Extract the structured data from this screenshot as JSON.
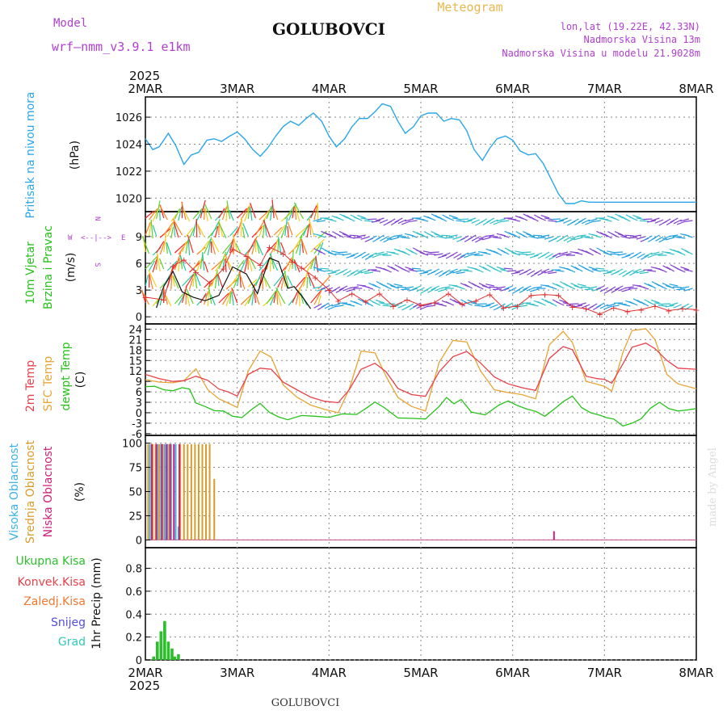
{
  "header": {
    "model_label": "Model",
    "model_name": "wrf–nmm_v3.9.1  e1km",
    "station_title": "GOLUBOVCI",
    "chart_kind": "Meteogram",
    "coords": "lon,lat (19.22E, 42.33N)",
    "elevation": "Nadmorska Visina 13m",
    "model_elevation": "Nadmorska Visina u modelu 21.9028m",
    "year_top": "2025",
    "footer_station": "GOLUBOVCI",
    "credit": "made by Angel"
  },
  "colors": {
    "pressure": "#2aa6e8",
    "t2m": "#e8404a",
    "sfc": "#e8a434",
    "dewpt": "#26c21a",
    "precip": "#2bbf2b",
    "high_cloud": "#3cb0e8",
    "mid_cloud": "#d89c2c",
    "low_cloud": "#d0207a",
    "header_purple": "#b040d0",
    "header_gold": "#e8b850"
  },
  "chart_data": [
    {
      "type": "line",
      "panel": "pressure",
      "ylabel_lines": [
        "Pritisak na nivou mora",
        "(hPa)"
      ],
      "x_unit": "days since 2025-03-02 00:00",
      "x_ticks": [
        "2MAR",
        "3MAR",
        "4MAR",
        "5MAR",
        "6MAR",
        "7MAR",
        "8MAR"
      ],
      "ylim": [
        1019,
        1027.5
      ],
      "yticks": [
        1020,
        1022,
        1024,
        1026
      ],
      "grid": true,
      "series": [
        {
          "name": "Pritisak na nivou mora",
          "x": [
            0,
            0.08,
            0.15,
            0.25,
            0.33,
            0.42,
            0.5,
            0.58,
            0.67,
            0.75,
            0.83,
            0.92,
            1,
            1.08,
            1.17,
            1.25,
            1.33,
            1.42,
            1.5,
            1.58,
            1.67,
            1.75,
            1.83,
            1.92,
            2,
            2.08,
            2.17,
            2.25,
            2.33,
            2.42,
            2.5,
            2.58,
            2.67,
            2.75,
            2.83,
            2.92,
            3,
            3.08,
            3.17,
            3.25,
            3.33,
            3.42,
            3.5,
            3.58,
            3.67,
            3.75,
            3.83,
            3.92,
            4,
            4.08,
            4.17,
            4.25,
            4.33,
            4.42,
            4.5,
            4.58,
            4.67,
            4.75,
            4.83,
            4.92,
            5,
            5.08,
            5.17,
            5.25,
            5.33,
            5.42,
            5.5,
            5.58,
            5.67,
            5.75,
            5.83,
            5.92,
            6
          ],
          "values": [
            1024.4,
            1023.6,
            1023.8,
            1024.8,
            1023.9,
            1022.5,
            1023.2,
            1023.4,
            1024.3,
            1024.4,
            1024.2,
            1024.6,
            1024.9,
            1024.4,
            1023.6,
            1023.1,
            1023.7,
            1024.6,
            1025.3,
            1025.7,
            1025.4,
            1025.9,
            1026.3,
            1025.7,
            1024.6,
            1023.8,
            1024.4,
            1025.3,
            1025.9,
            1025.9,
            1026.4,
            1027,
            1026.8,
            1025.7,
            1024.8,
            1025.3,
            1026.1,
            1026.3,
            1026.3,
            1025.7,
            1025.9,
            1025.8,
            1025,
            1023.6,
            1022.8,
            1023.7,
            1024.4,
            1024.6,
            1024.3,
            1023.5,
            1023.2,
            1023.3,
            1022.6,
            1021.4,
            1020.3,
            1019.6,
            1019.6,
            1019.8,
            1019.7,
            1019.7,
            1019.7,
            1019.7,
            1019.7,
            1019.7,
            1019.7,
            1019.7,
            1019.7,
            1019.7,
            1019.7,
            1019.7,
            1019.7,
            1019.7,
            1019.7
          ]
        }
      ]
    },
    {
      "type": "line",
      "panel": "wind",
      "ylabel_lines": [
        "10m Vjetar",
        "Brzina i Pravac",
        "(m/s)"
      ],
      "compass": [
        "N",
        "W",
        "E",
        "S"
      ],
      "ylim": [
        -0.8,
        11.8
      ],
      "yticks": [
        0,
        3,
        6,
        9
      ],
      "grid": true,
      "series": [
        {
          "name": "Brzina",
          "x": [
            0.12,
            0.2,
            0.3,
            0.4,
            0.52,
            0.65,
            0.8,
            0.95,
            1.1,
            1.22,
            1.35,
            1.45,
            1.55,
            1.62,
            1.72,
            1.8
          ],
          "values": [
            1,
            3.4,
            5.1,
            2.8,
            2.2,
            1.8,
            2.4,
            5.6,
            4.8,
            2.6,
            6.6,
            6.2,
            3.2,
            3.4,
            2.1,
            0.9
          ]
        },
        {
          "name": "Udari",
          "x": [
            0,
            0.2,
            0.3,
            0.42,
            0.55,
            0.7,
            0.85,
            0.95,
            1.1,
            1.25,
            1.35,
            1.5,
            1.6,
            1.7,
            1.85,
            2,
            2.1,
            2.25,
            2.4,
            2.55,
            2.7,
            2.85,
            3,
            3.15,
            3.3,
            3.45,
            3.6,
            3.75,
            3.9,
            4.05,
            4.2,
            4.35,
            4.5,
            4.65,
            4.8,
            4.95,
            5.1,
            5.25,
            5.4,
            5.55,
            5.7,
            5.85,
            6
          ],
          "values": [
            2.2,
            1.9,
            5.7,
            6.4,
            5,
            3.8,
            5.4,
            7.6,
            6.8,
            5.8,
            7.8,
            7.1,
            6.2,
            5.5,
            4.4,
            3,
            1.8,
            2.6,
            1.7,
            2.6,
            1.2,
            1.9,
            1.3,
            1.6,
            2.6,
            1.4,
            1.8,
            2.5,
            1,
            1.2,
            2.4,
            2.5,
            2.4,
            1.1,
            0.9,
            0.3,
            1,
            0.6,
            0.8,
            1.2,
            0.7,
            0.9,
            0.8
          ]
        }
      ]
    },
    {
      "type": "line",
      "panel": "temperature",
      "ylabel_lines": [
        "2m Temp",
        "SFC Temp",
        "dewpt Temp",
        "(C)"
      ],
      "ylim": [
        -6.5,
        25.5
      ],
      "yticks": [
        -6,
        -3,
        0,
        3,
        6,
        9,
        12,
        15,
        18,
        21,
        24
      ],
      "grid": true,
      "series": [
        {
          "name": "2m Temp",
          "x": [
            0,
            0.15,
            0.3,
            0.42,
            0.55,
            0.68,
            0.8,
            0.9,
            1,
            1.12,
            1.25,
            1.37,
            1.5,
            1.65,
            1.8,
            1.95,
            2.1,
            2.22,
            2.35,
            2.5,
            2.62,
            2.75,
            2.9,
            3.05,
            3.2,
            3.35,
            3.5,
            3.65,
            3.8,
            3.95,
            4.1,
            4.25,
            4.4,
            4.55,
            4.65,
            4.8,
            4.92,
            5,
            5.08,
            5.2,
            5.3,
            5.45,
            5.55,
            5.68,
            5.8,
            6
          ],
          "values": [
            11,
            9.8,
            9,
            9.2,
            10.5,
            9.3,
            6.8,
            6,
            4.8,
            11,
            12.8,
            12.5,
            8.8,
            6.6,
            4.5,
            3.3,
            2.9,
            6.6,
            12.5,
            14.2,
            11.8,
            7,
            5.2,
            4.7,
            11.8,
            16.1,
            17.6,
            14.3,
            10.3,
            8.3,
            7.2,
            6.4,
            15.6,
            19,
            18.1,
            10.5,
            9.8,
            9.6,
            8.5,
            14,
            18.8,
            20,
            18.4,
            15,
            12.8,
            12.5
          ]
        },
        {
          "name": "SFC Temp",
          "x": [
            0,
            0.15,
            0.3,
            0.42,
            0.55,
            0.68,
            0.8,
            0.9,
            1,
            1.12,
            1.25,
            1.37,
            1.5,
            1.65,
            1.8,
            1.95,
            2.1,
            2.22,
            2.35,
            2.5,
            2.62,
            2.75,
            2.9,
            3.05,
            3.2,
            3.35,
            3.5,
            3.65,
            3.8,
            3.95,
            4.1,
            4.25,
            4.4,
            4.55,
            4.65,
            4.8,
            4.92,
            5,
            5.08,
            5.2,
            5.3,
            5.45,
            5.55,
            5.68,
            5.8,
            6
          ],
          "values": [
            9.5,
            8.8,
            8.6,
            9.2,
            12.6,
            6.6,
            4,
            2.8,
            1.5,
            12,
            17.7,
            16,
            8,
            4.5,
            2.2,
            1,
            0,
            6.8,
            17.7,
            17.2,
            10.5,
            4.4,
            1.8,
            0.5,
            14.5,
            20.8,
            20.3,
            12,
            6.6,
            5.8,
            5.2,
            4,
            19.5,
            23.4,
            20.2,
            9,
            8.2,
            7.6,
            6.2,
            17.3,
            23.6,
            24.1,
            21,
            11,
            8.3,
            6.9
          ]
        },
        {
          "name": "dewpt Temp",
          "x": [
            0,
            0.1,
            0.2,
            0.3,
            0.4,
            0.48,
            0.55,
            0.65,
            0.75,
            0.85,
            0.95,
            1.05,
            1.15,
            1.25,
            1.35,
            1.45,
            1.55,
            1.7,
            1.85,
            2,
            2.15,
            2.3,
            2.4,
            2.5,
            2.6,
            2.75,
            2.9,
            3.05,
            3.2,
            3.28,
            3.36,
            3.44,
            3.55,
            3.7,
            3.85,
            3.95,
            4.05,
            4.15,
            4.25,
            4.35,
            4.45,
            4.55,
            4.65,
            4.75,
            4.85,
            4.95,
            5.02,
            5.1,
            5.2,
            5.3,
            5.4,
            5.5,
            5.6,
            5.7,
            5.8,
            5.9,
            6
          ],
          "values": [
            7.5,
            7.6,
            6.6,
            6.3,
            7.2,
            6.8,
            2.8,
            1.8,
            0.6,
            0.5,
            -1,
            -1.4,
            0.8,
            2.7,
            0.1,
            -1.2,
            -2,
            -0.8,
            -1,
            -1.3,
            -0.3,
            -0.5,
            1.2,
            3.1,
            1.5,
            -1.5,
            -1.6,
            -1.8,
            1.8,
            4.4,
            2.6,
            3.8,
            0.2,
            -0.6,
            2.2,
            3.4,
            2.1,
            1.1,
            0.4,
            -1,
            1,
            3.2,
            4.8,
            1.5,
            0,
            -0.7,
            -1.4,
            -1.8,
            -3.8,
            -3,
            -1.7,
            1.3,
            3,
            1.2,
            0.5,
            0.8,
            1.2
          ]
        }
      ]
    },
    {
      "type": "bar",
      "panel": "cloud",
      "ylabel_lines": [
        "Visoka Oblacnost",
        "Srednja Oblacnost",
        "Niska Oblacnost",
        "(%)"
      ],
      "ylim": [
        -8,
        108
      ],
      "yticks": [
        0,
        25,
        50,
        75,
        100
      ],
      "grid": true,
      "series": [
        {
          "name": "Visoka Oblacnost",
          "x": [
            0.05,
            0.13,
            0.17,
            0.21,
            0.24,
            0.28,
            0.33,
            0.36,
            0.64
          ],
          "values": [
            99,
            99,
            99,
            99,
            99,
            99,
            99,
            14,
            0
          ]
        },
        {
          "name": "Srednja Oblacnost",
          "x": [
            0.03,
            0.08,
            0.11,
            0.15,
            0.19,
            0.26,
            0.38,
            0.42,
            0.46,
            0.5,
            0.54,
            0.58,
            0.62,
            0.66,
            0.7,
            0.75
          ],
          "values": [
            99,
            99,
            99,
            99,
            99,
            99,
            99,
            99,
            99,
            99,
            99,
            99,
            99,
            99,
            99,
            63
          ]
        },
        {
          "name": "Niska Oblacnost",
          "x": [
            0.07,
            0.12,
            0.18,
            0.23,
            0.27,
            0.31,
            0.37,
            0.44,
            4.45
          ],
          "values": [
            99,
            99,
            99,
            99,
            99,
            99,
            99,
            0,
            9
          ]
        }
      ]
    },
    {
      "type": "bar",
      "panel": "precip",
      "ylabel_lines": [
        "1hr Precip (mm)"
      ],
      "legend": [
        "Ukupna Kisa",
        "Konvek.Kisa",
        "Zaledj.Kisa",
        "Snijeg",
        "Grad"
      ],
      "ylim": [
        0,
        0.98
      ],
      "yticks": [
        0,
        0.2,
        0.4,
        0.6,
        0.8
      ],
      "grid": true,
      "series": [
        {
          "name": "Ukupna Kisa",
          "x": [
            0.09,
            0.13,
            0.17,
            0.21,
            0.25,
            0.29,
            0.32,
            0.36
          ],
          "values": [
            0.03,
            0.16,
            0.25,
            0.34,
            0.16,
            0.1,
            0.03,
            0.05
          ]
        }
      ]
    }
  ]
}
